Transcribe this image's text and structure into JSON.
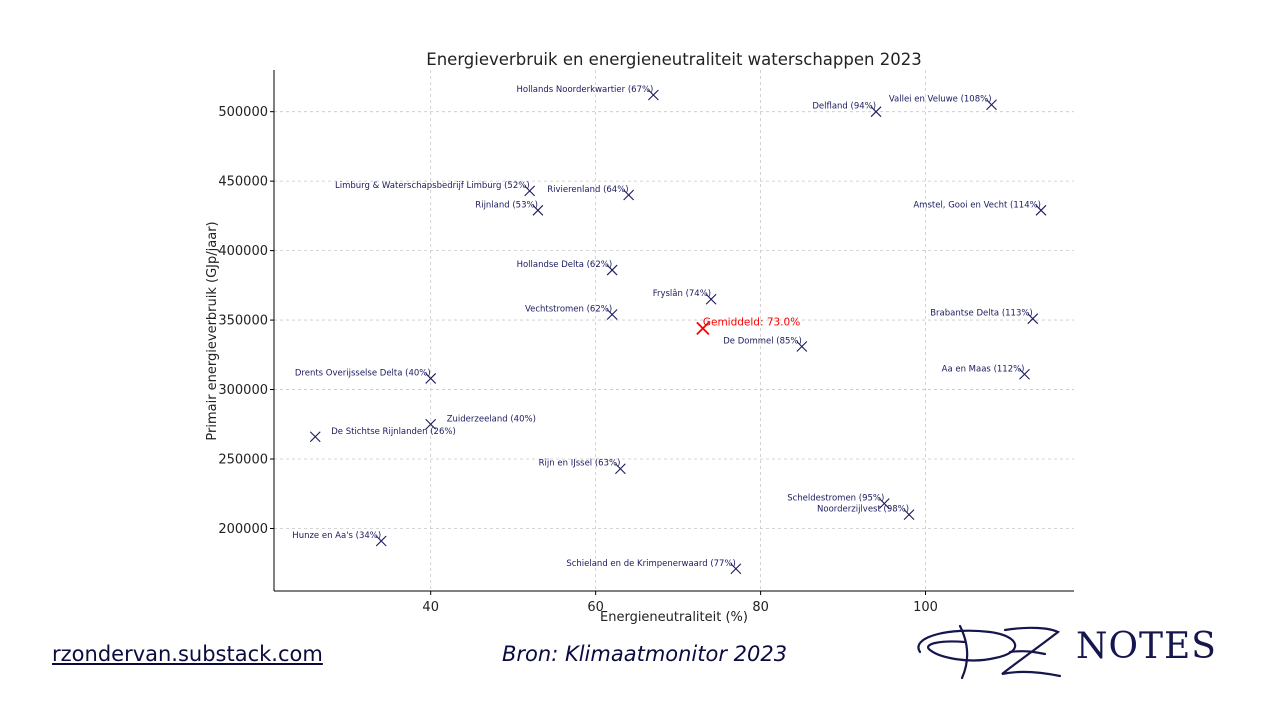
{
  "chart_data": {
    "type": "scatter",
    "title": "Energieverbruik en energieneutraliteit waterschappen 2023",
    "xlabel": "Energieneutraliteit (%)",
    "ylabel": "Primair energieverbruik (GJp/jaar)",
    "xlim": [
      21,
      118
    ],
    "ylim": [
      155000,
      530000
    ],
    "xticks": [
      40,
      60,
      80,
      100
    ],
    "yticks": [
      200000,
      250000,
      300000,
      350000,
      400000,
      450000,
      500000
    ],
    "grid": true,
    "marker_color": "#1a1a5e",
    "points": [
      {
        "label": "Hollands Noorderkwartier (67%)",
        "x": 67,
        "y": 512000,
        "anchor": "end"
      },
      {
        "label": "Delfland (94%)",
        "x": 94,
        "y": 500000,
        "anchor": "end"
      },
      {
        "label": "Vallei en Veluwe (108%)",
        "x": 108,
        "y": 505000,
        "anchor": "end"
      },
      {
        "label": "Limburg & Waterschapsbedrijf Limburg (52%)",
        "x": 52,
        "y": 443000,
        "anchor": "end"
      },
      {
        "label": "Rivierenland (64%)",
        "x": 64,
        "y": 440000,
        "anchor": "end"
      },
      {
        "label": "Rijnland (53%)",
        "x": 53,
        "y": 429000,
        "anchor": "end"
      },
      {
        "label": "Amstel, Gooi en Vecht (114%)",
        "x": 114,
        "y": 429000,
        "anchor": "end"
      },
      {
        "label": "Hollandse Delta (62%)",
        "x": 62,
        "y": 386000,
        "anchor": "end"
      },
      {
        "label": "Fryslân (74%)",
        "x": 74,
        "y": 365000,
        "anchor": "end"
      },
      {
        "label": "Vechtstromen (62%)",
        "x": 62,
        "y": 354000,
        "anchor": "end"
      },
      {
        "label": "Brabantse Delta (113%)",
        "x": 113,
        "y": 351000,
        "anchor": "end"
      },
      {
        "label": "De Dommel (85%)",
        "x": 85,
        "y": 331000,
        "anchor": "end"
      },
      {
        "label": "Drents Overijsselse Delta (40%)",
        "x": 40,
        "y": 308000,
        "anchor": "end"
      },
      {
        "label": "Aa en Maas (112%)",
        "x": 112,
        "y": 311000,
        "anchor": "end"
      },
      {
        "label": "Zuiderzeeland (40%)",
        "x": 40,
        "y": 275000,
        "anchor": "start"
      },
      {
        "label": "De Stichtse Rijnlanden (26%)",
        "x": 26,
        "y": 266000,
        "anchor": "start"
      },
      {
        "label": "Rijn en IJssel (63%)",
        "x": 63,
        "y": 243000,
        "anchor": "end"
      },
      {
        "label": "Scheldestromen (95%)",
        "x": 95,
        "y": 218000,
        "anchor": "end"
      },
      {
        "label": "Noorderzijlvest (98%)",
        "x": 98,
        "y": 210000,
        "anchor": "end"
      },
      {
        "label": "Hunze en Aa's (34%)",
        "x": 34,
        "y": 191000,
        "anchor": "end"
      },
      {
        "label": "Schieland en de Krimpenerwaard (77%)",
        "x": 77,
        "y": 171000,
        "anchor": "end"
      }
    ],
    "average": {
      "label": "Gemiddeld: 73.0%",
      "x": 73,
      "y": 344000,
      "color": "#ff0000"
    }
  },
  "footer": {
    "link_text": "rzondervan.substack.com",
    "source_text": "Bron: Klimaatmonitor 2023",
    "logo_text": "NOTES",
    "logo_monogram": "RZ",
    "logo_color": "#16164f"
  }
}
